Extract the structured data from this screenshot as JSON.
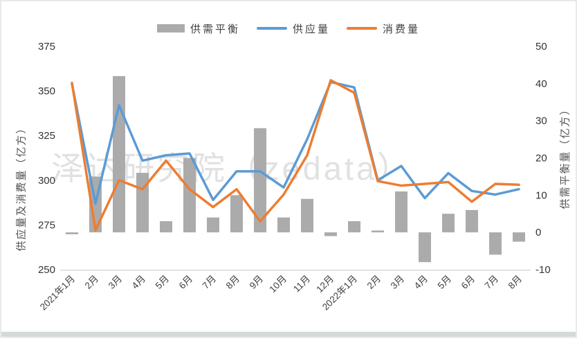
{
  "watermark": "泽达研究院（zedata）",
  "legend": [
    {
      "label": "供需平衡",
      "type": "bar",
      "color": "#ababab"
    },
    {
      "label": "供应量",
      "type": "line",
      "color": "#5b9bd5"
    },
    {
      "label": "消费量",
      "type": "line",
      "color": "#ed7d31"
    }
  ],
  "chart_data": {
    "type": "combo-bar-line",
    "categories": [
      "2021年1月",
      "2月",
      "3月",
      "4月",
      "5月",
      "6月",
      "7月",
      "8月",
      "9月",
      "10月",
      "11月",
      "12月",
      "2022年1月",
      "2月",
      "3月",
      "4月",
      "5月",
      "6月",
      "7月",
      "8月"
    ],
    "series": [
      {
        "name": "供需平衡",
        "type": "bar",
        "axis": "right",
        "color": "#ababab",
        "values": [
          -0.5,
          15,
          42,
          16,
          3,
          20,
          4,
          10,
          28,
          4,
          9,
          -1,
          3,
          0.5,
          11,
          -8,
          5,
          6,
          -6,
          -2.5
        ]
      },
      {
        "name": "供应量",
        "type": "line",
        "axis": "left",
        "color": "#5b9bd5",
        "values": [
          354,
          287,
          342,
          311,
          314,
          315,
          289,
          305,
          305,
          296,
          323,
          355,
          352,
          300,
          308,
          290,
          304,
          294,
          292,
          295
        ]
      },
      {
        "name": "消费量",
        "type": "line",
        "axis": "left",
        "color": "#ed7d31",
        "values": [
          354.5,
          272,
          300,
          295,
          311,
          295,
          285,
          295,
          277,
          292,
          314,
          356,
          349,
          299.5,
          297,
          298,
          299,
          288,
          298,
          297.5
        ]
      }
    ],
    "left_axis": {
      "title": "供应量及消费量（亿方）",
      "min": 250,
      "max": 375,
      "step": 25,
      "ticks": [
        250,
        275,
        300,
        325,
        350,
        375
      ]
    },
    "right_axis": {
      "title": "供需平衡量（亿方）",
      "min": -10,
      "max": 50,
      "step": 10,
      "ticks": [
        -10,
        0,
        10,
        20,
        30,
        40,
        50
      ]
    },
    "grid": false,
    "legend_position": "top",
    "x_label_rotation": -45
  }
}
